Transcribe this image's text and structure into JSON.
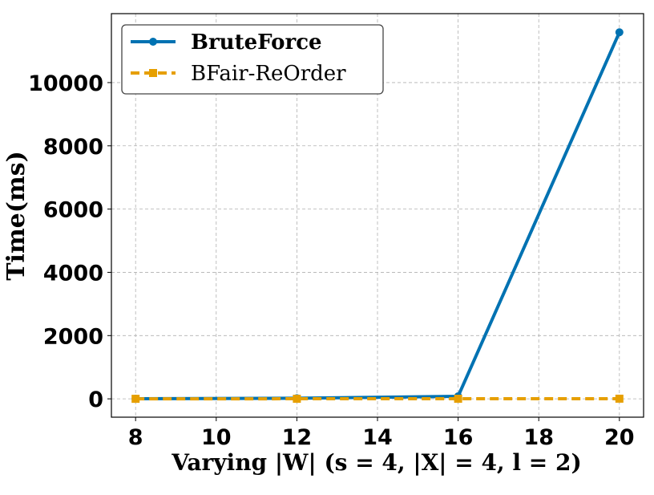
{
  "chart_data": {
    "type": "line",
    "xlabel": "Varying |W| (s = 4, |X| = 4, l = 2)",
    "ylabel": "Time(ms)",
    "xlim": [
      7.4,
      20.6
    ],
    "ylim": [
      -580,
      12180
    ],
    "x_ticks": [
      8,
      10,
      12,
      14,
      16,
      18,
      20
    ],
    "x_tick_labels": [
      "8",
      "10",
      "12",
      "14",
      "16",
      "18",
      "20"
    ],
    "y_ticks": [
      0,
      2000,
      4000,
      6000,
      8000,
      10000
    ],
    "y_tick_labels": [
      "0",
      "2000",
      "4000",
      "6000",
      "8000",
      "10000"
    ],
    "grid": true,
    "legend_position": "top-left",
    "series": [
      {
        "name": "BruteForce",
        "color": "#0072b2",
        "style": "solid",
        "marker": "circle",
        "x": [
          8,
          12,
          16,
          20
        ],
        "y": [
          2,
          20,
          80,
          11590
        ]
      },
      {
        "name": "BFair-ReOrder",
        "color": "#e69f00",
        "style": "dashed",
        "marker": "square",
        "x": [
          8,
          12,
          16,
          20
        ],
        "y": [
          1,
          2,
          3,
          5
        ]
      }
    ]
  }
}
